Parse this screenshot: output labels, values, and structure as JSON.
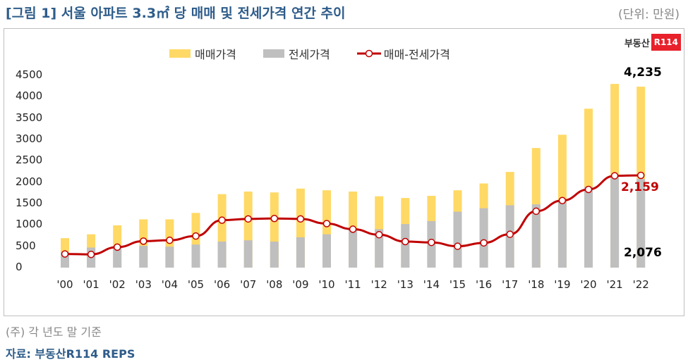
{
  "header": {
    "title": "[그림 1] 서울 아파트 3.3㎡ 당 매매 및 전세가격 연간 추이",
    "unit": "(단위: 만원)"
  },
  "brand": {
    "text": "부동산",
    "box": "R114"
  },
  "legend": [
    {
      "label": "매매가격",
      "color": "#ffd966"
    },
    {
      "label": "전세가격",
      "color": "#bfbfbf"
    },
    {
      "label": "매매-전세가격",
      "color": "#c00000"
    }
  ],
  "chart_data": {
    "type": "bar",
    "title": "서울 아파트 3.3㎡ 당 매매 및 전세가격 연간 추이",
    "xlabel": "",
    "ylabel": "만원",
    "ylim": [
      0,
      4500
    ],
    "yticks": [
      0,
      500,
      1000,
      1500,
      2000,
      2500,
      3000,
      3500,
      4000,
      4500
    ],
    "categories": [
      "'00",
      "'01",
      "'02",
      "'03",
      "'04",
      "'05",
      "'06",
      "'07",
      "'08",
      "'09",
      "'10",
      "'11",
      "'12",
      "'13",
      "'14",
      "'15",
      "'16",
      "'17",
      "'18",
      "'19",
      "'20",
      "'21",
      "'22"
    ],
    "series": [
      {
        "name": "매매가격",
        "type": "bar",
        "values": [
          690,
          780,
          990,
          1130,
          1130,
          1280,
          1720,
          1780,
          1760,
          1850,
          1810,
          1780,
          1670,
          1630,
          1680,
          1810,
          1970,
          2240,
          2800,
          3110,
          3720,
          4300,
          4235
        ]
      },
      {
        "name": "전세가격",
        "type": "bar",
        "values": [
          370,
          470,
          510,
          510,
          490,
          540,
          610,
          640,
          610,
          710,
          780,
          880,
          900,
          1020,
          1090,
          1310,
          1390,
          1460,
          1480,
          1540,
          1890,
          2150,
          2076
        ]
      },
      {
        "name": "매매-전세가격",
        "type": "line",
        "values": [
          320,
          310,
          480,
          620,
          640,
          740,
          1110,
          1140,
          1150,
          1140,
          1030,
          900,
          770,
          610,
          590,
          500,
          580,
          780,
          1320,
          1570,
          1830,
          2150,
          2159
        ]
      }
    ],
    "annotations": [
      {
        "text": "4,235",
        "series": "매매가격",
        "x": "'22"
      },
      {
        "text": "2,159",
        "series": "매매-전세가격",
        "x": "'22"
      },
      {
        "text": "2,076",
        "series": "전세가격",
        "x": "'22"
      }
    ],
    "grid": false,
    "legend_position": "top"
  },
  "labels": {
    "sale": "4,235",
    "gap": "2,159",
    "jeonse": "2,076"
  },
  "footer": {
    "note": "(주) 각 년도 말 기준",
    "source": "자료: 부동산R114 REPS"
  }
}
